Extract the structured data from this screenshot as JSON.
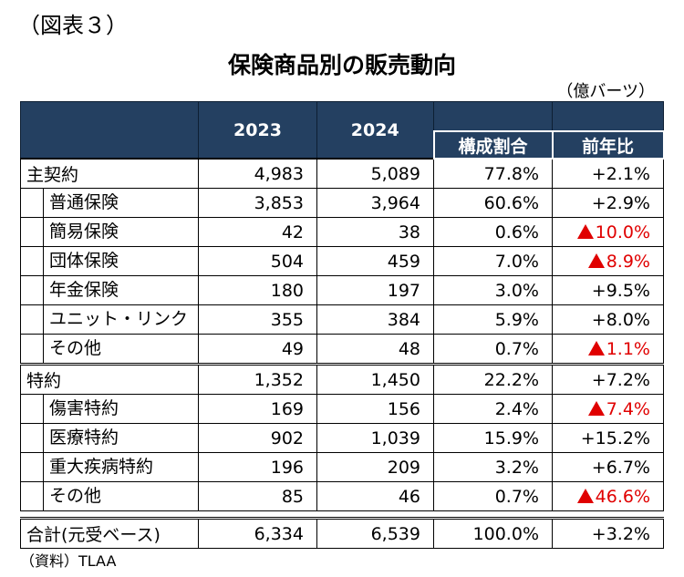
{
  "figure_label": "（図表３）",
  "title": "保険商品別の販売動向",
  "unit": "（億バーツ）",
  "source": "（資料）TLAA",
  "headers": {
    "y2023": "2023",
    "y2024": "2024",
    "share": "構成割合",
    "yoy": "前年比"
  },
  "rows": [
    {
      "name": "主契約",
      "v2023": "4,983",
      "v2024": "5,089",
      "share": "77.8%",
      "yoy": "+2.1%",
      "level": "main",
      "negative": false
    },
    {
      "name": "普通保険",
      "v2023": "3,853",
      "v2024": "3,964",
      "share": "60.6%",
      "yoy": "+2.9%",
      "level": "sub",
      "negative": false
    },
    {
      "name": "簡易保険",
      "v2023": "42",
      "v2024": "38",
      "share": "0.6%",
      "yoy": "10.0%",
      "level": "sub",
      "negative": true
    },
    {
      "name": "団体保険",
      "v2023": "504",
      "v2024": "459",
      "share": "7.0%",
      "yoy": "8.9%",
      "level": "sub",
      "negative": true
    },
    {
      "name": "年金保険",
      "v2023": "180",
      "v2024": "197",
      "share": "3.0%",
      "yoy": "+9.5%",
      "level": "sub",
      "negative": false
    },
    {
      "name": "ユニット・リンク",
      "v2023": "355",
      "v2024": "384",
      "share": "5.9%",
      "yoy": "+8.0%",
      "level": "sub",
      "negative": false
    },
    {
      "name": "その他",
      "v2023": "49",
      "v2024": "48",
      "share": "0.7%",
      "yoy": "1.1%",
      "level": "sub",
      "negative": true
    },
    {
      "name": "特約",
      "v2023": "1,352",
      "v2024": "1,450",
      "share": "22.2%",
      "yoy": "+7.2%",
      "level": "main",
      "negative": false
    },
    {
      "name": "傷害特約",
      "v2023": "169",
      "v2024": "156",
      "share": "2.4%",
      "yoy": "7.4%",
      "level": "sub",
      "negative": true
    },
    {
      "name": "医療特約",
      "v2023": "902",
      "v2024": "1,039",
      "share": "15.9%",
      "yoy": "+15.2%",
      "level": "sub",
      "negative": false
    },
    {
      "name": "重大疾病特約",
      "v2023": "196",
      "v2024": "209",
      "share": "3.2%",
      "yoy": "+6.7%",
      "level": "sub",
      "negative": false
    },
    {
      "name": "その他",
      "v2023": "85",
      "v2024": "46",
      "share": "0.7%",
      "yoy": "46.6%",
      "level": "sub",
      "negative": true
    },
    {
      "name": "合計(元受ベース)",
      "v2023": "6,334",
      "v2024": "6,539",
      "share": "100.0%",
      "yoy": "+3.2%",
      "level": "total",
      "negative": false
    }
  ],
  "colors": {
    "header_bg": "#244061",
    "negative": "#e00000"
  }
}
